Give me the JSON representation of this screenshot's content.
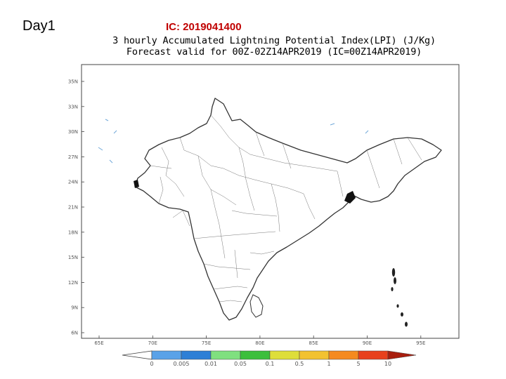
{
  "header": {
    "day_label": "Day1",
    "ic_label": "IC: 2019041400"
  },
  "map": {
    "title_line1": "3 hourly Accumulated Lightning Potential Index(LPI) (J/Kg)",
    "title_line2": "Forecast valid for 00Z-02Z14APR2019 (IC=00Z14APR2019)",
    "lat_labels": [
      "35N",
      "33N",
      "30N",
      "27N",
      "24N",
      "21N",
      "18N",
      "15N",
      "12N",
      "9N",
      "6N"
    ],
    "lon_labels": [
      "65E",
      "70E",
      "75E",
      "80E",
      "85E",
      "90E",
      "95E"
    ]
  },
  "colorbar": {
    "labels": [
      "0",
      "0.005",
      "0.01",
      "0.05",
      "0.1",
      "0.5",
      "1",
      "5",
      "10"
    ],
    "colors": [
      "#5aa2e8",
      "#2e7fd6",
      "#7fe07f",
      "#3cbf3c",
      "#dede3a",
      "#f2c230",
      "#f58a1f",
      "#e8401c",
      "#a81e0e"
    ]
  }
}
